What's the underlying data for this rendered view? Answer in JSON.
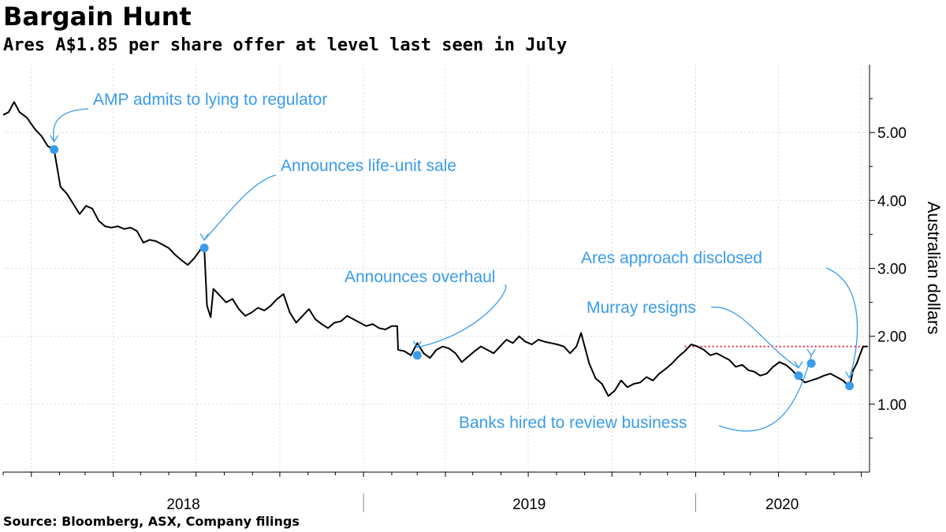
{
  "header": {
    "title": "Bargain Hunt",
    "subtitle": "Ares A$1.85 per share offer at level last seen in July"
  },
  "footer": {
    "source": "Source: Bloomberg, ASX, Company filings"
  },
  "colors": {
    "line": "#000000",
    "accent": "#3a9cec",
    "offer_line": "#e8263a",
    "grid": "#d9d9d9"
  },
  "chart_data": {
    "type": "line",
    "title": "Bargain Hunt",
    "subtitle": "Ares A$1.85 per share offer at level last seen in July",
    "ylabel": "Australian dollars",
    "y_axis_side": "right",
    "ylim": [
      0,
      6.0
    ],
    "yticks": [
      1.0,
      2.0,
      3.0,
      4.0,
      5.0
    ],
    "ytick_labels": [
      "1.00",
      "2.00",
      "3.00",
      "4.00",
      "5.00"
    ],
    "xlim": [
      "2017-12-01",
      "2020-07-10"
    ],
    "year_labels": [
      "2018",
      "2019",
      "2020"
    ],
    "grid": true,
    "series": [
      {
        "points": [
          [
            "2017-12-01",
            5.26
          ],
          [
            "2017-12-07",
            5.3
          ],
          [
            "2017-12-13",
            5.45
          ],
          [
            "2017-12-19",
            5.3
          ],
          [
            "2017-12-27",
            5.22
          ],
          [
            "2018-01-05",
            5.05
          ],
          [
            "2018-01-12",
            4.95
          ],
          [
            "2018-01-19",
            4.8
          ],
          [
            "2018-01-26",
            4.75
          ],
          [
            "2018-02-02",
            4.2
          ],
          [
            "2018-02-09",
            4.1
          ],
          [
            "2018-02-16",
            3.95
          ],
          [
            "2018-02-23",
            3.8
          ],
          [
            "2018-03-02",
            3.92
          ],
          [
            "2018-03-09",
            3.88
          ],
          [
            "2018-03-16",
            3.7
          ],
          [
            "2018-03-23",
            3.62
          ],
          [
            "2018-03-30",
            3.6
          ],
          [
            "2018-04-06",
            3.62
          ],
          [
            "2018-04-13",
            3.58
          ],
          [
            "2018-04-20",
            3.6
          ],
          [
            "2018-04-27",
            3.55
          ],
          [
            "2018-05-04",
            3.38
          ],
          [
            "2018-05-11",
            3.42
          ],
          [
            "2018-05-18",
            3.4
          ],
          [
            "2018-05-25",
            3.35
          ],
          [
            "2018-06-01",
            3.3
          ],
          [
            "2018-06-08",
            3.2
          ],
          [
            "2018-06-15",
            3.12
          ],
          [
            "2018-06-22",
            3.05
          ],
          [
            "2018-06-29",
            3.15
          ],
          [
            "2018-07-06",
            3.28
          ],
          [
            "2018-07-10",
            3.3
          ],
          [
            "2018-07-13",
            2.45
          ],
          [
            "2018-07-17",
            2.28
          ],
          [
            "2018-07-20",
            2.7
          ],
          [
            "2018-07-27",
            2.6
          ],
          [
            "2018-08-03",
            2.5
          ],
          [
            "2018-08-10",
            2.55
          ],
          [
            "2018-08-17",
            2.4
          ],
          [
            "2018-08-24",
            2.3
          ],
          [
            "2018-08-31",
            2.35
          ],
          [
            "2018-09-07",
            2.42
          ],
          [
            "2018-09-14",
            2.38
          ],
          [
            "2018-09-21",
            2.45
          ],
          [
            "2018-09-28",
            2.55
          ],
          [
            "2018-10-05",
            2.62
          ],
          [
            "2018-10-12",
            2.35
          ],
          [
            "2018-10-19",
            2.2
          ],
          [
            "2018-10-26",
            2.3
          ],
          [
            "2018-11-02",
            2.4
          ],
          [
            "2018-11-09",
            2.25
          ],
          [
            "2018-11-16",
            2.18
          ],
          [
            "2018-11-23",
            2.12
          ],
          [
            "2018-11-30",
            2.2
          ],
          [
            "2018-12-07",
            2.22
          ],
          [
            "2018-12-14",
            2.3
          ],
          [
            "2018-12-21",
            2.25
          ],
          [
            "2018-12-28",
            2.2
          ],
          [
            "2019-01-04",
            2.15
          ],
          [
            "2019-01-11",
            2.18
          ],
          [
            "2019-01-18",
            2.12
          ],
          [
            "2019-01-25",
            2.1
          ],
          [
            "2019-02-01",
            2.15
          ],
          [
            "2019-02-07",
            2.15
          ],
          [
            "2019-02-08",
            1.8
          ],
          [
            "2019-02-15",
            1.78
          ],
          [
            "2019-02-22",
            1.72
          ],
          [
            "2019-03-01",
            1.9
          ],
          [
            "2019-03-08",
            1.75
          ],
          [
            "2019-03-15",
            1.68
          ],
          [
            "2019-03-22",
            1.8
          ],
          [
            "2019-03-29",
            1.85
          ],
          [
            "2019-04-05",
            1.82
          ],
          [
            "2019-04-12",
            1.75
          ],
          [
            "2019-04-19",
            1.62
          ],
          [
            "2019-04-26",
            1.7
          ],
          [
            "2019-05-03",
            1.78
          ],
          [
            "2019-05-10",
            1.85
          ],
          [
            "2019-05-17",
            1.8
          ],
          [
            "2019-05-24",
            1.75
          ],
          [
            "2019-05-31",
            1.85
          ],
          [
            "2019-06-07",
            1.95
          ],
          [
            "2019-06-14",
            1.9
          ],
          [
            "2019-06-21",
            2.0
          ],
          [
            "2019-06-28",
            1.92
          ],
          [
            "2019-07-05",
            1.88
          ],
          [
            "2019-07-12",
            1.95
          ],
          [
            "2019-07-19",
            1.92
          ],
          [
            "2019-07-26",
            1.9
          ],
          [
            "2019-08-02",
            1.88
          ],
          [
            "2019-08-09",
            1.85
          ],
          [
            "2019-08-16",
            1.75
          ],
          [
            "2019-08-23",
            1.85
          ],
          [
            "2019-08-28",
            2.05
          ],
          [
            "2019-09-02",
            1.8
          ],
          [
            "2019-09-06",
            1.6
          ],
          [
            "2019-09-13",
            1.38
          ],
          [
            "2019-09-20",
            1.3
          ],
          [
            "2019-09-27",
            1.12
          ],
          [
            "2019-10-04",
            1.2
          ],
          [
            "2019-10-11",
            1.35
          ],
          [
            "2019-10-18",
            1.25
          ],
          [
            "2019-10-25",
            1.3
          ],
          [
            "2019-11-01",
            1.32
          ],
          [
            "2019-11-08",
            1.4
          ],
          [
            "2019-11-15",
            1.35
          ],
          [
            "2019-11-22",
            1.45
          ],
          [
            "2019-11-29",
            1.52
          ],
          [
            "2019-12-06",
            1.6
          ],
          [
            "2019-12-13",
            1.7
          ],
          [
            "2019-12-20",
            1.78
          ],
          [
            "2019-12-27",
            1.88
          ],
          [
            "2020-01-03",
            1.85
          ],
          [
            "2020-01-10",
            1.8
          ],
          [
            "2020-01-17",
            1.72
          ],
          [
            "2020-01-24",
            1.75
          ],
          [
            "2020-01-31",
            1.7
          ],
          [
            "2020-02-07",
            1.65
          ],
          [
            "2020-02-14",
            1.55
          ],
          [
            "2020-02-21",
            1.58
          ],
          [
            "2020-02-28",
            1.5
          ],
          [
            "2020-03-05",
            1.48
          ],
          [
            "2020-03-12",
            1.42
          ],
          [
            "2020-03-19",
            1.45
          ],
          [
            "2020-03-26",
            1.55
          ],
          [
            "2020-04-02",
            1.62
          ],
          [
            "2020-04-09",
            1.58
          ],
          [
            "2020-04-16",
            1.5
          ],
          [
            "2020-04-23",
            1.4
          ],
          [
            "2020-04-30",
            1.32
          ],
          [
            "2020-05-07",
            1.35
          ],
          [
            "2020-05-14",
            1.38
          ],
          [
            "2020-05-21",
            1.42
          ],
          [
            "2020-05-28",
            1.45
          ],
          [
            "2020-06-04",
            1.4
          ],
          [
            "2020-06-11",
            1.35
          ],
          [
            "2020-06-18",
            1.25
          ],
          [
            "2020-06-22",
            1.5
          ],
          [
            "2020-06-26",
            1.6
          ],
          [
            "2020-06-30",
            1.75
          ],
          [
            "2020-07-03",
            1.85
          ],
          [
            "2020-07-08",
            1.85
          ]
        ]
      }
    ],
    "reference_line": {
      "y": 1.85,
      "from": "2019-12-20",
      "to": "2020-07-10",
      "style": "dotted"
    },
    "annotations": [
      {
        "text": "AMP admits to lying to regulator",
        "date": "2018-01-26",
        "value": 4.75
      },
      {
        "text": "Announces life-unit sale",
        "date": "2018-07-10",
        "value": 3.3
      },
      {
        "text": "Announces overhaul",
        "date": "2019-03-01",
        "value": 1.72
      },
      {
        "text": "Murray resigns",
        "date": "2020-04-23",
        "value": 1.42
      },
      {
        "text": "Banks hired to review business",
        "date": "2020-05-07",
        "value": 1.6
      },
      {
        "text": "Ares approach disclosed",
        "date": "2020-06-18",
        "value": 1.27
      }
    ]
  }
}
